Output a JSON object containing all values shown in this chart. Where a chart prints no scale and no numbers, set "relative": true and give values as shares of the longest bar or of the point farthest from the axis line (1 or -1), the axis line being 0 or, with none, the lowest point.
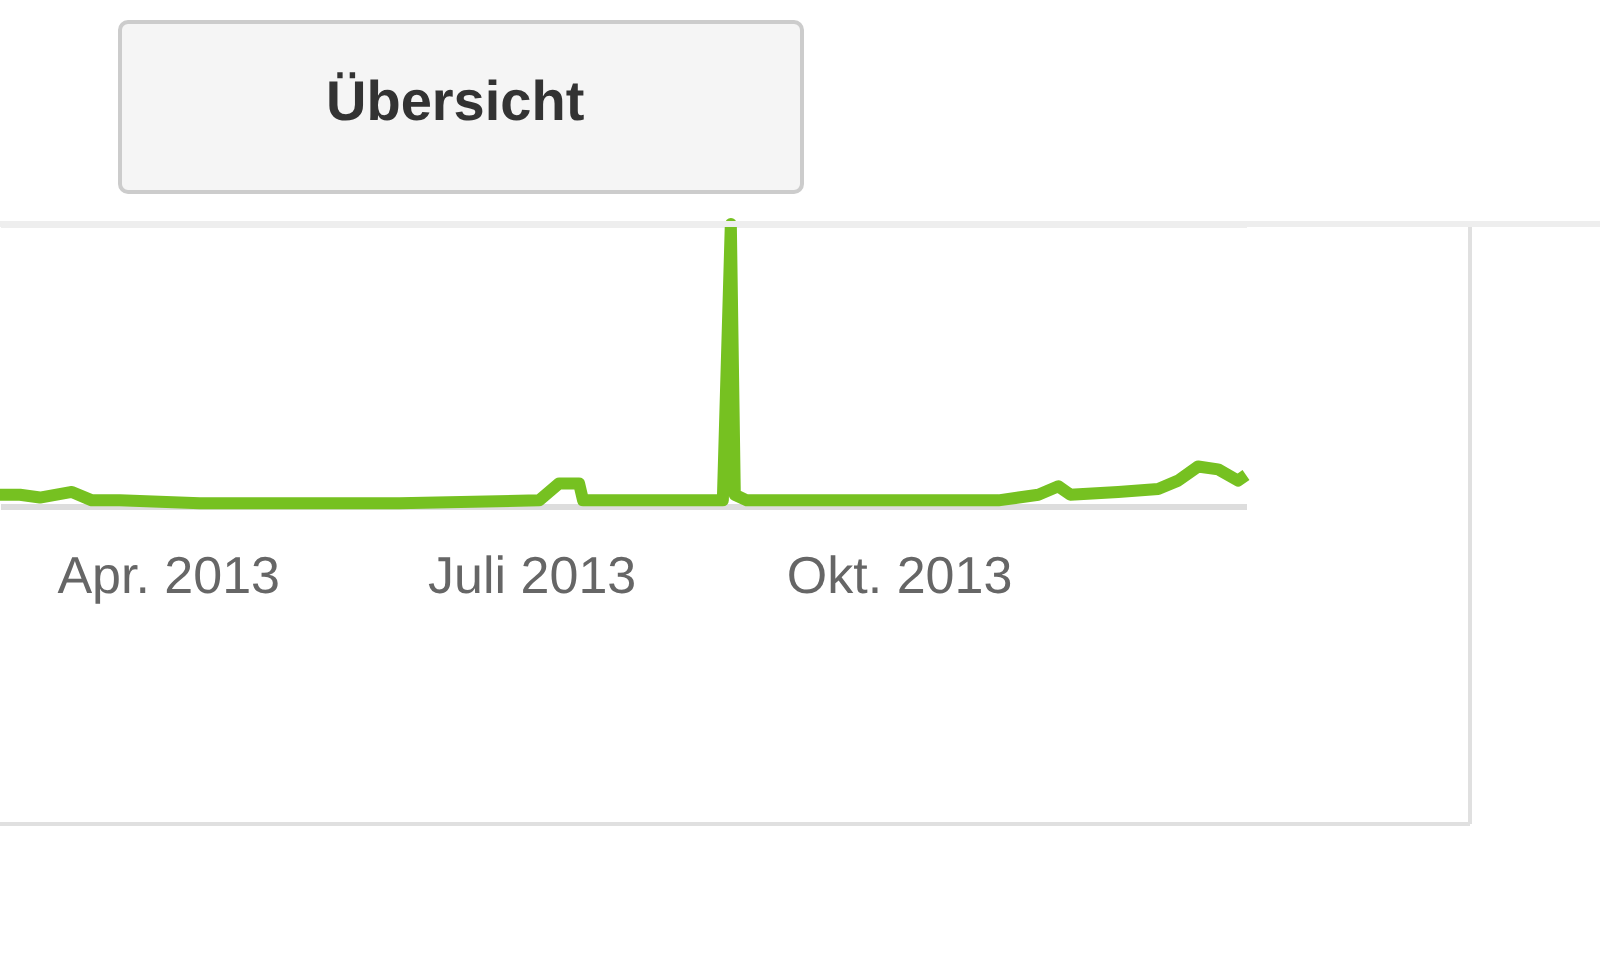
{
  "chart_data": {
    "type": "line",
    "relative": true,
    "grid": "y",
    "line_style": "solid",
    "annotations": [
      "Übersicht"
    ],
    "xlim": [
      "2013-02-18",
      "2013-12-27"
    ],
    "xticks": [
      {
        "value": "2013-04-01",
        "label": "Apr. 2013"
      },
      {
        "value": "2013-07-01",
        "label": "Juli 2013"
      },
      {
        "value": "2013-10-01",
        "label": "Okt. 2013"
      }
    ],
    "x": [
      "2013-02-18",
      "2013-02-23",
      "2013-02-28",
      "2013-03-08",
      "2013-03-13",
      "2013-03-20",
      "2013-04-09",
      "2013-05-29",
      "2013-07-03",
      "2013-07-08",
      "2013-07-13",
      "2013-07-14",
      "2013-08-18",
      "2013-08-20",
      "2013-08-21",
      "2013-08-24",
      "2013-09-17",
      "2013-10-26",
      "2013-11-05",
      "2013-11-10",
      "2013-11-13",
      "2013-11-25",
      "2013-12-05",
      "2013-12-10",
      "2013-12-15",
      "2013-12-20",
      "2013-12-25",
      "2013-12-27"
    ],
    "series": [
      {
        "color": "#76c121",
        "values": [
          0.04,
          0.04,
          0.03,
          0.05,
          0.02,
          0.02,
          0.01,
          0.01,
          0.02,
          0.08,
          0.08,
          0.02,
          0.02,
          1,
          0.04,
          0.02,
          0.02,
          0.02,
          0.04,
          0.07,
          0.04,
          0.05,
          0.06,
          0.09,
          0.14,
          0.13,
          0.09,
          0.11
        ]
      }
    ]
  }
}
